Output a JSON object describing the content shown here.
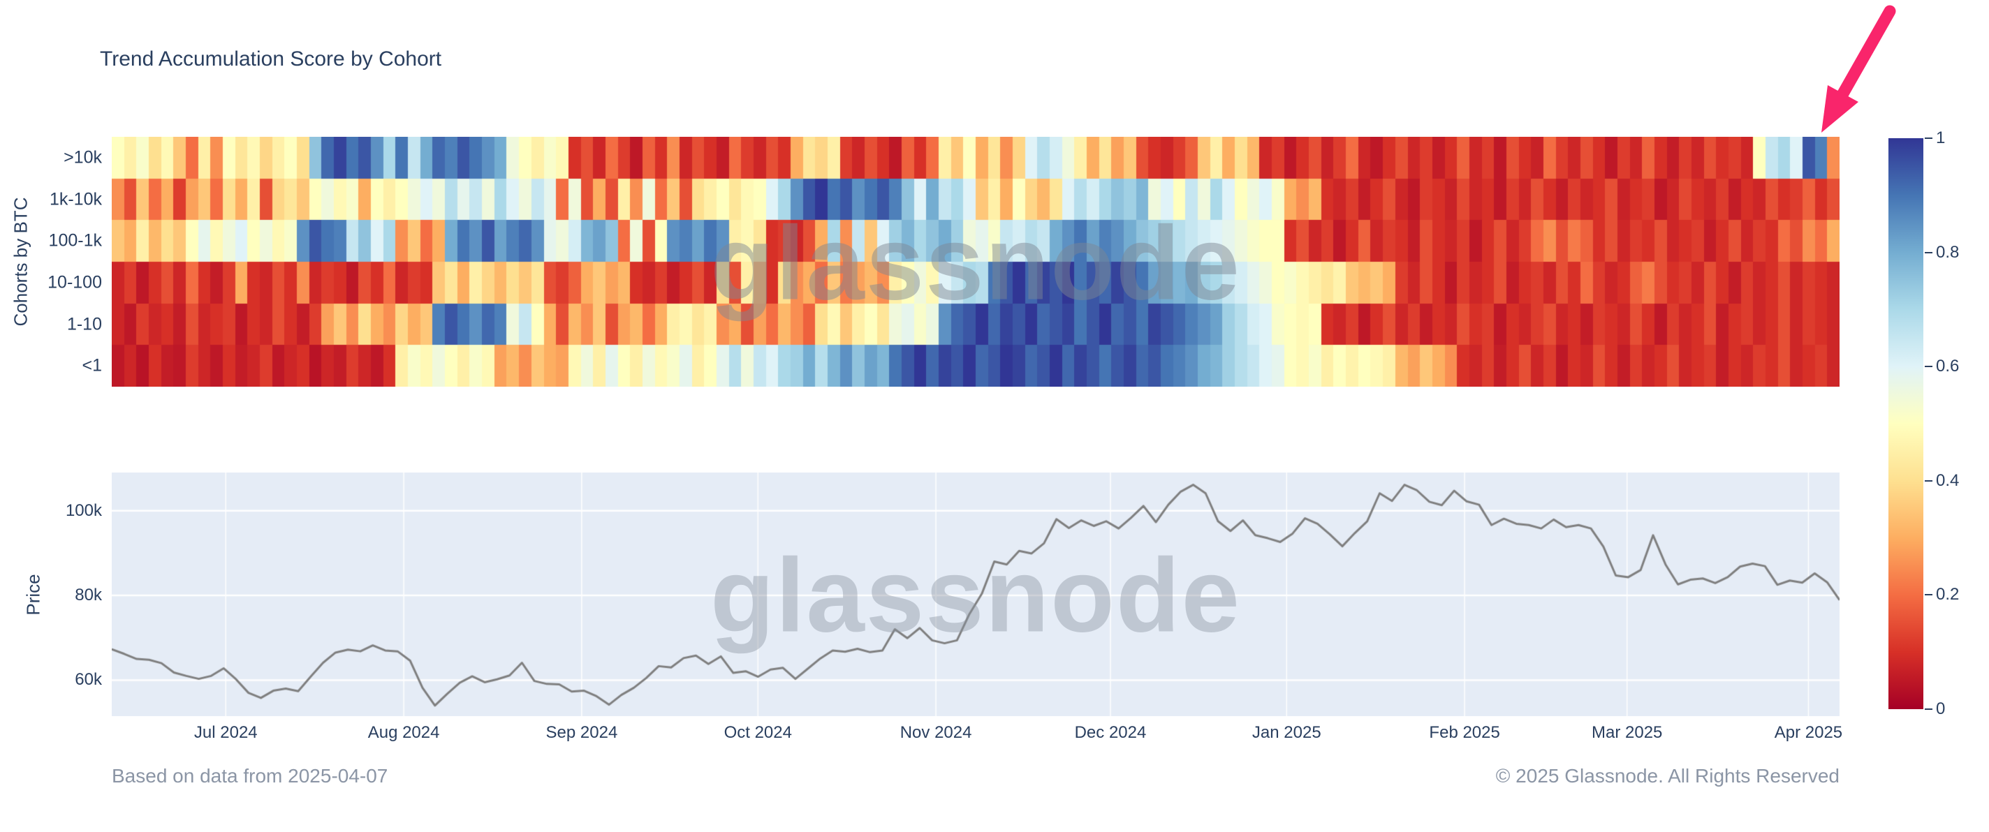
{
  "title": "Trend Accumulation Score by Cohort",
  "watermark": "glassnode",
  "footer": {
    "left": "Based on data from 2025-04-07",
    "right": "© 2025 Glassnode. All Rights Reserved"
  },
  "colors": {
    "dark_text": "#2a3f5f",
    "muted_text": "#8b95a5",
    "plot_bg": "#e5ecf6",
    "price_line": "#7f7f7f",
    "arrow": "#f9256b"
  },
  "chart_data": [
    {
      "type": "heatmap",
      "ylabel": "Cohorts by BTC",
      "rows": [
        ">10k",
        "1k-10k",
        "100-1k",
        "10-100",
        "1-10",
        "<1"
      ],
      "colorscale": "RdYlBu",
      "zmin": 0,
      "zmax": 1,
      "colorbar_ticks": [
        {
          "value": 1,
          "label": "1"
        },
        {
          "value": 0.8,
          "label": "0.8"
        },
        {
          "value": 0.6,
          "label": "0.6"
        },
        {
          "value": 0.4,
          "label": "0.4"
        },
        {
          "value": 0.2,
          "label": "0.2"
        },
        {
          "value": 0,
          "label": "0"
        }
      ],
      "z": [
        [
          0.5,
          0.45,
          0.52,
          0.4,
          0.48,
          0.35,
          0.2,
          0.45,
          0.25,
          0.5,
          0.42,
          0.48,
          0.38,
          0.45,
          0.5,
          0.4,
          0.75,
          0.92,
          0.98,
          0.9,
          0.95,
          0.85,
          0.7,
          0.9,
          0.65,
          0.8,
          0.92,
          0.88,
          0.95,
          0.9,
          0.85,
          0.8,
          0.55,
          0.5,
          0.45,
          0.52,
          0.48,
          0.1,
          0.15,
          0.08,
          0.2,
          0.12,
          0.05,
          0.18,
          0.1,
          0.25,
          0.08,
          0.15,
          0.1,
          0.06,
          0.2,
          0.12,
          0.08,
          0.15,
          0.1,
          0.3,
          0.42,
          0.38,
          0.45,
          0.12,
          0.08,
          0.15,
          0.1,
          0.05,
          0.18,
          0.1,
          0.2,
          0.45,
          0.35,
          0.5,
          0.3,
          0.42,
          0.25,
          0.38,
          0.6,
          0.68,
          0.62,
          0.55,
          0.45,
          0.3,
          0.42,
          0.28,
          0.35,
          0.15,
          0.1,
          0.08,
          0.12,
          0.18,
          0.35,
          0.45,
          0.3,
          0.4,
          0.32,
          0.08,
          0.12,
          0.05,
          0.1,
          0.15,
          0.07,
          0.12,
          0.2,
          0.08,
          0.05,
          0.1,
          0.15,
          0.08,
          0.12,
          0.06,
          0.1,
          0.18,
          0.08,
          0.12,
          0.05,
          0.15,
          0.1,
          0.07,
          0.2,
          0.12,
          0.08,
          0.15,
          0.1,
          0.05,
          0.12,
          0.08,
          0.18,
          0.1,
          0.06,
          0.12,
          0.08,
          0.15,
          0.1,
          0.12,
          0.08,
          0.5,
          0.65,
          0.7,
          0.6,
          0.95,
          0.88,
          0.25
        ],
        [
          0.25,
          0.15,
          0.35,
          0.2,
          0.3,
          0.12,
          0.28,
          0.35,
          0.2,
          0.4,
          0.3,
          0.45,
          0.15,
          0.38,
          0.42,
          0.35,
          0.5,
          0.55,
          0.48,
          0.52,
          0.3,
          0.5,
          0.45,
          0.5,
          0.55,
          0.6,
          0.55,
          0.68,
          0.58,
          0.65,
          0.55,
          0.7,
          0.6,
          0.55,
          0.65,
          0.58,
          0.2,
          0.55,
          0.15,
          0.3,
          0.15,
          0.45,
          0.25,
          0.55,
          0.2,
          0.35,
          0.15,
          0.4,
          0.45,
          0.5,
          0.42,
          0.48,
          0.5,
          0.6,
          0.7,
          0.85,
          0.95,
          1,
          0.9,
          0.95,
          0.85,
          0.9,
          0.95,
          0.88,
          0.75,
          0.6,
          0.8,
          0.65,
          0.7,
          0.6,
          0.35,
          0.45,
          0.3,
          0.5,
          0.38,
          0.32,
          0.42,
          0.6,
          0.68,
          0.62,
          0.7,
          0.75,
          0.72,
          0.78,
          0.55,
          0.6,
          0.5,
          0.65,
          0.55,
          0.7,
          0.6,
          0.5,
          0.55,
          0.6,
          0.52,
          0.3,
          0.25,
          0.32,
          0.1,
          0.08,
          0.12,
          0.06,
          0.1,
          0.15,
          0.08,
          0.05,
          0.12,
          0.1,
          0.07,
          0.14,
          0.08,
          0.1,
          0.05,
          0.12,
          0.08,
          0.15,
          0.1,
          0.06,
          0.12,
          0.08,
          0.1,
          0.15,
          0.07,
          0.1,
          0.12,
          0.05,
          0.08,
          0.14,
          0.1,
          0.08,
          0.12,
          0.06,
          0.1,
          0.08,
          0.15,
          0.1,
          0.12,
          0.18,
          0.1,
          0.15
        ],
        [
          0.35,
          0.3,
          0.45,
          0.32,
          0.4,
          0.35,
          0.5,
          0.58,
          0.48,
          0.55,
          0.6,
          0.5,
          0.55,
          0.48,
          0.52,
          0.85,
          0.95,
          0.9,
          0.88,
          0.65,
          0.75,
          0.6,
          0.7,
          0.25,
          0.35,
          0.2,
          0.3,
          0.8,
          0.9,
          0.85,
          0.95,
          0.82,
          0.88,
          0.92,
          0.85,
          0.58,
          0.55,
          0.62,
          0.78,
          0.82,
          0.75,
          0.2,
          0.55,
          0.15,
          0.5,
          0.85,
          0.88,
          0.82,
          0.9,
          0.85,
          0.45,
          0.48,
          0.42,
          0.1,
          0.12,
          0.08,
          0.15,
          0.3,
          0.7,
          0.25,
          0.65,
          0.35,
          0.6,
          0.72,
          0.78,
          0.7,
          0.75,
          0.8,
          0.72,
          0.55,
          0.58,
          0.52,
          0.65,
          0.62,
          0.68,
          0.65,
          0.8,
          0.85,
          0.9,
          0.82,
          0.88,
          0.85,
          0.8,
          0.75,
          0.72,
          0.7,
          0.68,
          0.65,
          0.62,
          0.6,
          0.58,
          0.55,
          0.52,
          0.5,
          0.5,
          0.1,
          0.15,
          0.08,
          0.12,
          0.05,
          0.1,
          0.18,
          0.08,
          0.12,
          0.1,
          0.06,
          0.15,
          0.1,
          0.08,
          0.12,
          0.05,
          0.1,
          0.15,
          0.08,
          0.12,
          0.2,
          0.25,
          0.15,
          0.22,
          0.18,
          0.1,
          0.15,
          0.08,
          0.12,
          0.1,
          0.15,
          0.08,
          0.1,
          0.12,
          0.06,
          0.1,
          0.15,
          0.08,
          0.12,
          0.1,
          0.2,
          0.15,
          0.25,
          0.2,
          0.3
        ],
        [
          0.08,
          0.12,
          0.05,
          0.1,
          0.15,
          0.08,
          0.2,
          0.1,
          0.06,
          0.12,
          0.3,
          0.1,
          0.08,
          0.15,
          0.1,
          0.25,
          0.08,
          0.12,
          0.1,
          0.05,
          0.15,
          0.1,
          0.2,
          0.08,
          0.12,
          0.1,
          0.35,
          0.42,
          0.3,
          0.45,
          0.38,
          0.32,
          0.4,
          0.35,
          0.42,
          0.15,
          0.12,
          0.18,
          0.3,
          0.35,
          0.28,
          0.32,
          0.1,
          0.08,
          0.12,
          0.06,
          0.1,
          0.15,
          0.08,
          0.4,
          0.15,
          0.45,
          0.3,
          0.1,
          0.4,
          0.25,
          0.3,
          0.2,
          0.35,
          0.22,
          0.28,
          0.32,
          0.25,
          0.45,
          0.5,
          0.55,
          0.48,
          0.6,
          0.65,
          0.7,
          0.68,
          0.9,
          0.95,
          1,
          0.92,
          0.98,
          0.95,
          1,
          0.9,
          0.95,
          0.92,
          0.98,
          0.95,
          0.9,
          0.82,
          0.8,
          0.78,
          0.8,
          0.72,
          0.7,
          0.65,
          0.62,
          0.58,
          0.55,
          0.5,
          0.52,
          0.48,
          0.45,
          0.42,
          0.46,
          0.35,
          0.32,
          0.35,
          0.3,
          0.12,
          0.08,
          0.15,
          0.1,
          0.05,
          0.12,
          0.08,
          0.1,
          0.15,
          0.06,
          0.1,
          0.12,
          0.08,
          0.15,
          0.1,
          0.2,
          0.12,
          0.08,
          0.1,
          0.18,
          0.22,
          0.15,
          0.1,
          0.12,
          0.08,
          0.15,
          0.1,
          0.06,
          0.12,
          0.08,
          0.1,
          0.15,
          0.08,
          0.12,
          0.1,
          0.08
        ],
        [
          0.08,
          0.05,
          0.12,
          0.08,
          0.1,
          0.06,
          0.15,
          0.08,
          0.1,
          0.12,
          0.05,
          0.1,
          0.08,
          0.15,
          0.1,
          0.06,
          0.12,
          0.28,
          0.35,
          0.25,
          0.4,
          0.3,
          0.25,
          0.38,
          0.3,
          0.35,
          0.88,
          0.95,
          0.9,
          0.85,
          0.92,
          0.88,
          0.55,
          0.65,
          0.5,
          0.3,
          0.15,
          0.32,
          0.25,
          0.35,
          0.15,
          0.28,
          0.32,
          0.2,
          0.3,
          0.45,
          0.48,
          0.42,
          0.46,
          0.25,
          0.3,
          0.15,
          0.28,
          0.2,
          0.32,
          0.25,
          0.18,
          0.4,
          0.48,
          0.35,
          0.45,
          0.5,
          0.42,
          0.55,
          0.58,
          0.52,
          0.56,
          0.85,
          0.92,
          0.95,
          1,
          0.92,
          0.98,
          0.95,
          1,
          0.92,
          0.95,
          0.98,
          0.9,
          0.95,
          1,
          0.92,
          0.95,
          0.9,
          0.98,
          0.95,
          0.92,
          0.88,
          0.85,
          0.82,
          0.72,
          0.68,
          0.62,
          0.6,
          0.52,
          0.5,
          0.48,
          0.5,
          0.1,
          0.08,
          0.12,
          0.05,
          0.1,
          0.15,
          0.08,
          0.12,
          0.06,
          0.1,
          0.08,
          0.15,
          0.1,
          0.12,
          0.05,
          0.1,
          0.08,
          0.12,
          0.15,
          0.08,
          0.1,
          0.06,
          0.12,
          0.1,
          0.08,
          0.15,
          0.1,
          0.05,
          0.12,
          0.08,
          0.1,
          0.15,
          0.06,
          0.1,
          0.12,
          0.08,
          0.1,
          0.15,
          0.08,
          0.12,
          0.1,
          0.08
        ],
        [
          0.05,
          0.08,
          0.04,
          0.1,
          0.06,
          0.05,
          0.12,
          0.08,
          0.05,
          0.1,
          0.06,
          0.08,
          0.12,
          0.05,
          0.08,
          0.1,
          0.04,
          0.08,
          0.06,
          0.12,
          0.08,
          0.05,
          0.1,
          0.45,
          0.52,
          0.48,
          0.55,
          0.5,
          0.45,
          0.52,
          0.48,
          0.28,
          0.32,
          0.25,
          0.35,
          0.3,
          0.28,
          0.48,
          0.55,
          0.45,
          0.58,
          0.5,
          0.45,
          0.55,
          0.48,
          0.52,
          0.58,
          0.45,
          0.5,
          0.58,
          0.68,
          0.55,
          0.65,
          0.6,
          0.7,
          0.72,
          0.8,
          0.68,
          0.78,
          0.85,
          0.75,
          0.82,
          0.78,
          0.9,
          0.95,
          1,
          0.92,
          0.98,
          0.95,
          1,
          0.92,
          0.95,
          1,
          0.98,
          0.92,
          0.95,
          1,
          0.92,
          0.98,
          0.95,
          0.9,
          0.95,
          0.98,
          0.92,
          0.95,
          0.9,
          0.88,
          0.85,
          0.8,
          0.78,
          0.72,
          0.68,
          0.65,
          0.6,
          0.58,
          0.5,
          0.48,
          0.52,
          0.45,
          0.5,
          0.46,
          0.5,
          0.48,
          0.45,
          0.32,
          0.28,
          0.35,
          0.3,
          0.25,
          0.1,
          0.08,
          0.12,
          0.06,
          0.1,
          0.15,
          0.08,
          0.12,
          0.05,
          0.1,
          0.08,
          0.15,
          0.1,
          0.06,
          0.12,
          0.08,
          0.1,
          0.15,
          0.08,
          0.1,
          0.12,
          0.06,
          0.1,
          0.08,
          0.12,
          0.1,
          0.15,
          0.08,
          0.1,
          0.12,
          0.08
        ]
      ]
    },
    {
      "type": "line",
      "ylabel": "Price",
      "ylim": [
        51.5,
        109
      ],
      "yticks": [
        {
          "value": 60,
          "label": "60k"
        },
        {
          "value": 80,
          "label": "80k"
        },
        {
          "value": 100,
          "label": "100k"
        }
      ],
      "x_ticks": [
        {
          "f": 0.066,
          "label": "Jul 2024"
        },
        {
          "f": 0.169,
          "label": "Aug 2024"
        },
        {
          "f": 0.272,
          "label": "Sep 2024"
        },
        {
          "f": 0.374,
          "label": "Oct 2024"
        },
        {
          "f": 0.477,
          "label": "Nov 2024"
        },
        {
          "f": 0.578,
          "label": "Dec 2024"
        },
        {
          "f": 0.68,
          "label": "Jan 2025"
        },
        {
          "f": 0.783,
          "label": "Feb 2025"
        },
        {
          "f": 0.877,
          "label": "Mar 2025"
        },
        {
          "f": 0.982,
          "label": "Apr 2025"
        }
      ],
      "values_k": [
        67.3,
        66.2,
        65.0,
        64.8,
        64.0,
        61.8,
        61.0,
        60.3,
        61.0,
        62.8,
        60.2,
        57.0,
        55.8,
        57.5,
        58.0,
        57.4,
        60.8,
        64.1,
        66.5,
        67.2,
        66.8,
        68.2,
        67.0,
        66.8,
        64.6,
        58.2,
        54.0,
        56.8,
        59.4,
        60.9,
        59.5,
        60.2,
        61.1,
        64.1,
        59.8,
        59.1,
        59.0,
        57.3,
        57.5,
        56.2,
        54.2,
        56.5,
        58.2,
        60.5,
        63.3,
        63.0,
        65.2,
        65.8,
        63.8,
        65.6,
        61.7,
        62.1,
        60.8,
        62.5,
        62.9,
        60.3,
        62.7,
        65.1,
        67.0,
        66.7,
        67.4,
        66.6,
        67.0,
        72.0,
        69.9,
        72.3,
        69.4,
        68.7,
        69.4,
        75.6,
        80.4,
        88.0,
        87.3,
        90.5,
        89.9,
        92.3,
        98.0,
        95.9,
        97.7,
        96.4,
        97.5,
        95.8,
        98.3,
        101.1,
        97.3,
        101.4,
        104.5,
        106.1,
        104.1,
        97.5,
        95.2,
        97.7,
        94.2,
        93.5,
        92.6,
        94.6,
        98.2,
        96.9,
        94.4,
        91.6,
        94.7,
        97.5,
        104.1,
        102.3,
        106.1,
        104.8,
        102.1,
        101.3,
        104.7,
        102.2,
        101.4,
        96.6,
        98.1,
        96.9,
        96.6,
        95.8,
        97.9,
        96.1,
        96.6,
        95.8,
        91.5,
        84.7,
        84.3,
        86.0,
        94.2,
        87.3,
        82.6,
        83.7,
        84.0,
        82.9,
        84.3,
        86.8,
        87.5,
        86.9,
        82.5,
        83.5,
        83.0,
        85.2,
        83.1,
        78.9
      ]
    }
  ]
}
